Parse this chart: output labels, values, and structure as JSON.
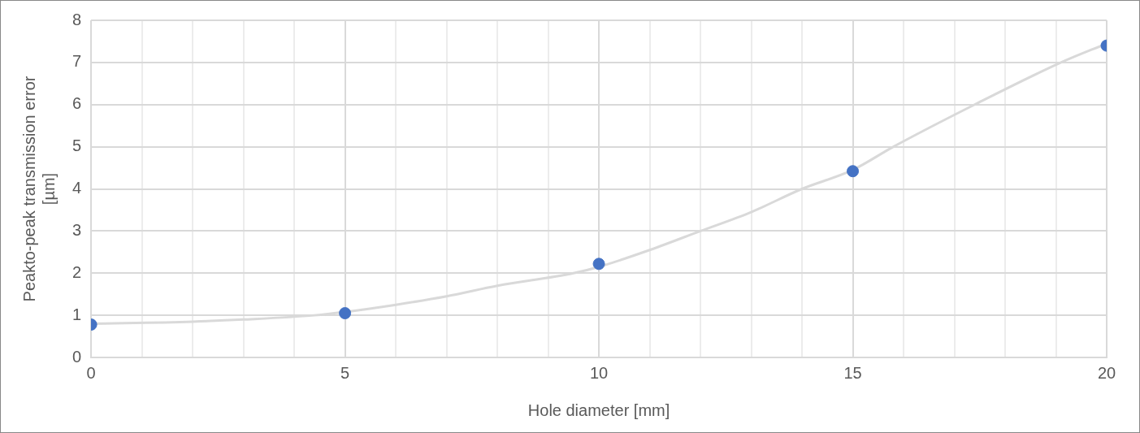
{
  "chart_data": {
    "type": "scatter",
    "xlabel": "Hole diameter [mm]",
    "ylabel": "Peakto-peak transmission error\n[µm]",
    "xlim": [
      0,
      20
    ],
    "ylim": [
      0,
      8
    ],
    "xticks": [
      0,
      {
        "value": 1,
        "label": null
      },
      {
        "value": 2,
        "label": null
      },
      {
        "value": 3,
        "label": null
      },
      {
        "value": 4,
        "label": null
      },
      5,
      {
        "value": 6,
        "label": null
      },
      {
        "value": 7,
        "label": null
      },
      {
        "value": 8,
        "label": null
      },
      {
        "value": 9,
        "label": null
      },
      10,
      {
        "value": 11,
        "label": null
      },
      {
        "value": 12,
        "label": null
      },
      {
        "value": 13,
        "label": null
      },
      {
        "value": 14,
        "label": null
      },
      15,
      {
        "value": 16,
        "label": null
      },
      {
        "value": 17,
        "label": null
      },
      {
        "value": 18,
        "label": null
      },
      {
        "value": 19,
        "label": null
      },
      20
    ],
    "yticks": [
      0,
      1,
      2,
      3,
      4,
      5,
      6,
      7,
      8
    ],
    "grid": true,
    "legend": false,
    "marker": "circle",
    "series": [
      {
        "type": "line",
        "color": "#d9d9d9",
        "marker": "none",
        "line_style": "solid",
        "x": [
          0,
          2,
          3,
          4.4,
          5,
          6,
          7,
          8,
          9.5,
          10,
          11,
          12,
          13,
          14,
          15,
          15.8,
          17.4,
          19.1,
          20
        ],
        "values": [
          0.8,
          0.85,
          0.9,
          1.0,
          1.08,
          1.25,
          1.45,
          1.7,
          2.0,
          2.15,
          2.55,
          3.0,
          3.45,
          4.0,
          4.45,
          5.0,
          6.0,
          7.0,
          7.45
        ]
      },
      {
        "color": "#4472c4",
        "x": [
          0,
          5,
          10,
          15,
          20
        ],
        "values": [
          0.78,
          1.05,
          2.22,
          4.42,
          7.4
        ]
      }
    ]
  }
}
